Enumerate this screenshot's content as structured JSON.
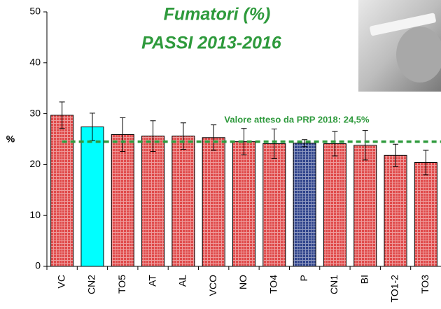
{
  "chart_data": {
    "type": "bar",
    "title": "Fumatori (%)",
    "subtitle": "PASSI 2013-2016",
    "y_label": "%",
    "categories": [
      "VC",
      "CN2",
      "TO5",
      "AT",
      "AL",
      "VCO",
      "NO",
      "TO4",
      "P",
      "CN1",
      "BI",
      "TO1-2",
      "TO3"
    ],
    "series": [
      {
        "values": [
          29.7,
          27.4,
          25.9,
          25.6,
          25.6,
          25.3,
          24.5,
          24.1,
          24.2,
          24.1,
          23.8,
          21.8,
          20.4
        ],
        "errors": [
          2.6,
          2.7,
          3.3,
          3.0,
          2.6,
          2.5,
          2.6,
          2.9,
          0.7,
          2.4,
          2.9,
          2.2,
          2.4
        ],
        "colors": [
          "#e04a4a",
          "#00ffff",
          "#e04a4a",
          "#e04a4a",
          "#e04a4a",
          "#e04a4a",
          "#e04a4a",
          "#e04a4a",
          "#30448c",
          "#e04a4a",
          "#e04a4a",
          "#e04a4a",
          "#e04a4a"
        ]
      }
    ],
    "reference": {
      "value": 24.5,
      "label": "Valore atteso da PRP 2018: 24,5%",
      "color": "#2e9a3c"
    },
    "ylim": [
      0,
      50
    ],
    "yticks": [
      0,
      10,
      20,
      30,
      40,
      50
    ],
    "grid": false
  }
}
